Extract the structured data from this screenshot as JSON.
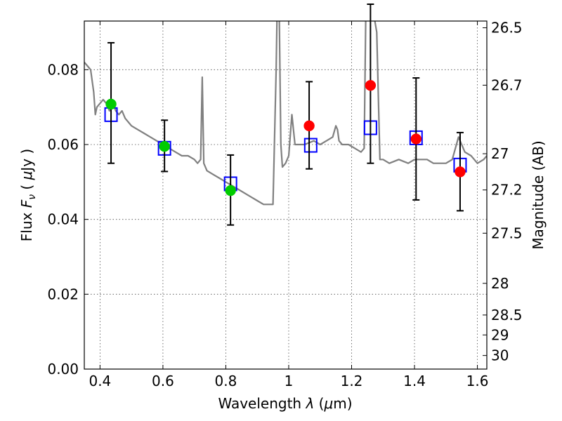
{
  "chart_data": {
    "type": "scatter",
    "title": "",
    "xlabel": {
      "prefix": "Wavelength ",
      "symbol": "λ",
      "unit_open": " (",
      "unit_mu": "μ",
      "unit_rest": "m)"
    },
    "ylabel": {
      "prefix": "Flux ",
      "symbol": "F",
      "sub": "ν",
      "unit_open": " ( ",
      "unit_mu": "μ",
      "unit_rest": "Jy )"
    },
    "ylabel_right": "Magnitude (AB)",
    "xlim": [
      0.35,
      1.63
    ],
    "ylim": [
      0.0,
      0.093
    ],
    "grid": true,
    "x_ticks": [
      {
        "value": 0.4,
        "label": "0.4"
      },
      {
        "value": 0.6,
        "label": "0.6"
      },
      {
        "value": 0.8,
        "label": "0.8"
      },
      {
        "value": 1.0,
        "label": "1"
      },
      {
        "value": 1.2,
        "label": "1.2"
      },
      {
        "value": 1.4,
        "label": "1.4"
      },
      {
        "value": 1.6,
        "label": "1.6"
      }
    ],
    "y_ticks": [
      {
        "value": 0.0,
        "label": "0.00"
      },
      {
        "value": 0.02,
        "label": "0.02"
      },
      {
        "value": 0.04,
        "label": "0.04"
      },
      {
        "value": 0.06,
        "label": "0.06"
      },
      {
        "value": 0.08,
        "label": "0.08"
      }
    ],
    "right_ticks": [
      {
        "mag": 26.5,
        "label": "26.5"
      },
      {
        "mag": 26.7,
        "label": "26.7"
      },
      {
        "mag": 27.0,
        "label": "27"
      },
      {
        "mag": 27.2,
        "label": "27.2"
      },
      {
        "mag": 27.5,
        "label": "27.5"
      },
      {
        "mag": 28.0,
        "label": "28"
      },
      {
        "mag": 28.5,
        "label": "28.5"
      },
      {
        "mag": 29.0,
        "label": "29"
      },
      {
        "mag": 30.0,
        "label": "30"
      }
    ],
    "series": [
      {
        "marker": "line",
        "color": "#808080",
        "x": [
          0.35,
          0.36,
          0.37,
          0.38,
          0.385,
          0.39,
          0.4,
          0.41,
          0.42,
          0.43,
          0.44,
          0.45,
          0.46,
          0.47,
          0.48,
          0.49,
          0.5,
          0.52,
          0.54,
          0.56,
          0.58,
          0.6,
          0.62,
          0.64,
          0.66,
          0.68,
          0.7,
          0.71,
          0.72,
          0.725,
          0.73,
          0.74,
          0.76,
          0.78,
          0.8,
          0.82,
          0.84,
          0.86,
          0.88,
          0.9,
          0.92,
          0.94,
          0.95,
          0.96,
          0.963,
          0.966,
          0.97,
          0.975,
          0.98,
          0.99,
          1.0,
          1.01,
          1.02,
          1.05,
          1.08,
          1.1,
          1.12,
          1.14,
          1.15,
          1.155,
          1.16,
          1.17,
          1.19,
          1.21,
          1.23,
          1.24,
          1.245,
          1.25,
          1.255,
          1.26,
          1.27,
          1.28,
          1.29,
          1.3,
          1.32,
          1.35,
          1.38,
          1.4,
          1.42,
          1.44,
          1.46,
          1.48,
          1.5,
          1.52,
          1.54,
          1.56,
          1.58,
          1.6,
          1.62,
          1.63
        ],
        "values": [
          0.082,
          0.081,
          0.08,
          0.074,
          0.068,
          0.07,
          0.071,
          0.072,
          0.071,
          0.069,
          0.071,
          0.069,
          0.068,
          0.069,
          0.067,
          0.066,
          0.065,
          0.064,
          0.063,
          0.062,
          0.061,
          0.06,
          0.059,
          0.058,
          0.057,
          0.057,
          0.056,
          0.055,
          0.056,
          0.078,
          0.055,
          0.053,
          0.052,
          0.051,
          0.05,
          0.049,
          0.048,
          0.047,
          0.046,
          0.045,
          0.044,
          0.044,
          0.044,
          0.08,
          0.095,
          0.095,
          0.095,
          0.06,
          0.054,
          0.055,
          0.057,
          0.068,
          0.06,
          0.06,
          0.061,
          0.06,
          0.061,
          0.062,
          0.065,
          0.064,
          0.061,
          0.06,
          0.06,
          0.059,
          0.058,
          0.059,
          0.095,
          0.095,
          0.095,
          0.095,
          0.095,
          0.09,
          0.056,
          0.056,
          0.055,
          0.056,
          0.055,
          0.056,
          0.056,
          0.056,
          0.055,
          0.055,
          0.055,
          0.056,
          0.062,
          0.058,
          0.057,
          0.055,
          0.056,
          0.057
        ]
      },
      {
        "marker": "open-square",
        "color": "#0000ff",
        "x": [
          0.435,
          0.605,
          0.815,
          1.07,
          1.26,
          1.405,
          1.545
        ],
        "values": [
          0.068,
          0.059,
          0.0495,
          0.0598,
          0.0645,
          0.0618,
          0.0545
        ]
      },
      {
        "marker": "filled-circle",
        "color": "#00cc00",
        "x": [
          0.435,
          0.605,
          0.815
        ],
        "values": [
          0.0708,
          0.0595,
          0.0477
        ]
      },
      {
        "marker": "filled-circle",
        "color": "#ff0000",
        "x": [
          1.065,
          1.26,
          1.405,
          1.545
        ],
        "values": [
          0.065,
          0.0758,
          0.0615,
          0.0527
        ]
      },
      {
        "marker": "errorbar",
        "color": "#000000",
        "x": [
          0.435,
          0.605,
          0.815,
          1.065,
          1.26,
          1.405,
          1.545
        ],
        "low": [
          0.055,
          0.0528,
          0.0385,
          0.0535,
          0.055,
          0.0452,
          0.0423
        ],
        "high": [
          0.0872,
          0.0665,
          0.0572,
          0.0768,
          0.0975,
          0.0778,
          0.0632
        ]
      }
    ]
  }
}
